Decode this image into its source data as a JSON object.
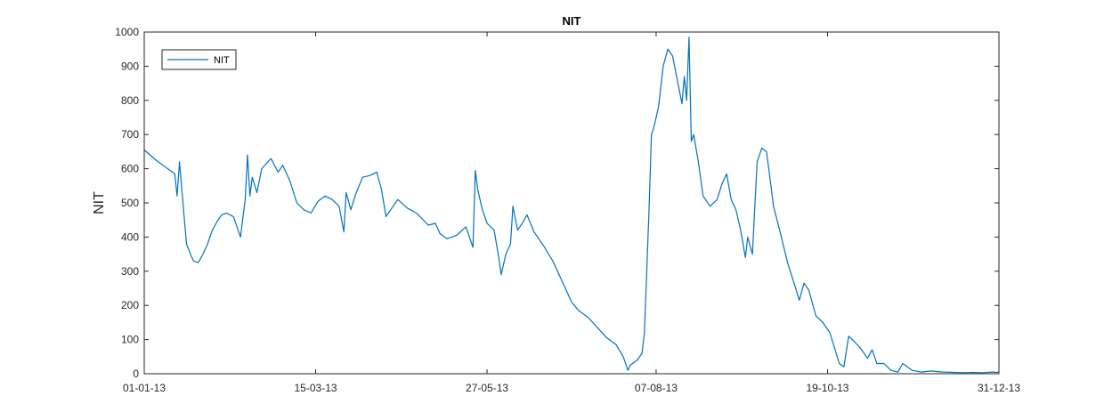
{
  "chart_data": {
    "type": "line",
    "title": "NIT",
    "xlabel": "",
    "ylabel": "NIT",
    "x_axis": {
      "type": "date",
      "range": [
        "2013-01-01",
        "2013-12-31"
      ],
      "tick_dates": [
        "2013-01-01",
        "2013-03-15",
        "2013-05-27",
        "2013-08-07",
        "2013-10-19",
        "2013-12-31"
      ],
      "tick_labels": [
        "01-01-13",
        "15-03-13",
        "27-05-13",
        "07-08-13",
        "19-10-13",
        "31-12-13"
      ]
    },
    "y_axis": {
      "range": [
        0,
        1000
      ],
      "ticks": [
        0,
        100,
        200,
        300,
        400,
        500,
        600,
        700,
        800,
        900,
        1000
      ]
    },
    "grid": false,
    "legend": {
      "position": "top-left",
      "entries": [
        "NIT"
      ]
    },
    "series": [
      {
        "name": "NIT",
        "color": "#0072BD",
        "points": [
          [
            "2013-01-01",
            655
          ],
          [
            "2013-01-06",
            625
          ],
          [
            "2013-01-10",
            605
          ],
          [
            "2013-01-14",
            585
          ],
          [
            "2013-01-15",
            520
          ],
          [
            "2013-01-16",
            620
          ],
          [
            "2013-01-18",
            460
          ],
          [
            "2013-01-19",
            380
          ],
          [
            "2013-01-21",
            345
          ],
          [
            "2013-01-22",
            330
          ],
          [
            "2013-01-24",
            325
          ],
          [
            "2013-01-26",
            350
          ],
          [
            "2013-01-28",
            380
          ],
          [
            "2013-01-30",
            420
          ],
          [
            "2013-02-01",
            445
          ],
          [
            "2013-02-03",
            465
          ],
          [
            "2013-02-05",
            470
          ],
          [
            "2013-02-08",
            460
          ],
          [
            "2013-02-11",
            400
          ],
          [
            "2013-02-13",
            510
          ],
          [
            "2013-02-14",
            640
          ],
          [
            "2013-02-15",
            520
          ],
          [
            "2013-02-16",
            575
          ],
          [
            "2013-02-18",
            530
          ],
          [
            "2013-02-20",
            600
          ],
          [
            "2013-02-24",
            630
          ],
          [
            "2013-02-27",
            590
          ],
          [
            "2013-03-01",
            610
          ],
          [
            "2013-03-04",
            565
          ],
          [
            "2013-03-07",
            500
          ],
          [
            "2013-03-10",
            480
          ],
          [
            "2013-03-13",
            470
          ],
          [
            "2013-03-16",
            505
          ],
          [
            "2013-03-19",
            520
          ],
          [
            "2013-03-22",
            510
          ],
          [
            "2013-03-25",
            490
          ],
          [
            "2013-03-27",
            415
          ],
          [
            "2013-03-28",
            530
          ],
          [
            "2013-03-30",
            480
          ],
          [
            "2013-04-01",
            525
          ],
          [
            "2013-04-04",
            575
          ],
          [
            "2013-04-07",
            580
          ],
          [
            "2013-04-10",
            590
          ],
          [
            "2013-04-12",
            540
          ],
          [
            "2013-04-14",
            460
          ],
          [
            "2013-04-16",
            480
          ],
          [
            "2013-04-19",
            510
          ],
          [
            "2013-04-23",
            485
          ],
          [
            "2013-04-27",
            470
          ],
          [
            "2013-05-02",
            435
          ],
          [
            "2013-05-05",
            440
          ],
          [
            "2013-05-07",
            410
          ],
          [
            "2013-05-10",
            395
          ],
          [
            "2013-05-14",
            405
          ],
          [
            "2013-05-18",
            430
          ],
          [
            "2013-05-21",
            370
          ],
          [
            "2013-05-22",
            595
          ],
          [
            "2013-05-23",
            540
          ],
          [
            "2013-05-25",
            480
          ],
          [
            "2013-05-27",
            440
          ],
          [
            "2013-05-30",
            420
          ],
          [
            "2013-06-01",
            340
          ],
          [
            "2013-06-02",
            290
          ],
          [
            "2013-06-04",
            350
          ],
          [
            "2013-06-06",
            380
          ],
          [
            "2013-06-07",
            490
          ],
          [
            "2013-06-09",
            420
          ],
          [
            "2013-06-11",
            440
          ],
          [
            "2013-06-13",
            465
          ],
          [
            "2013-06-16",
            415
          ],
          [
            "2013-06-20",
            375
          ],
          [
            "2013-06-24",
            330
          ],
          [
            "2013-06-28",
            270
          ],
          [
            "2013-07-02",
            210
          ],
          [
            "2013-07-05",
            185
          ],
          [
            "2013-07-09",
            165
          ],
          [
            "2013-07-13",
            135
          ],
          [
            "2013-07-17",
            105
          ],
          [
            "2013-07-21",
            85
          ],
          [
            "2013-07-24",
            50
          ],
          [
            "2013-07-26",
            10
          ],
          [
            "2013-07-27",
            25
          ],
          [
            "2013-07-30",
            40
          ],
          [
            "2013-08-01",
            60
          ],
          [
            "2013-08-02",
            120
          ],
          [
            "2013-08-04",
            480
          ],
          [
            "2013-08-05",
            700
          ],
          [
            "2013-08-06",
            720
          ],
          [
            "2013-08-08",
            780
          ],
          [
            "2013-08-10",
            900
          ],
          [
            "2013-08-12",
            950
          ],
          [
            "2013-08-14",
            930
          ],
          [
            "2013-08-16",
            860
          ],
          [
            "2013-08-18",
            790
          ],
          [
            "2013-08-19",
            870
          ],
          [
            "2013-08-20",
            800
          ],
          [
            "2013-08-21",
            985
          ],
          [
            "2013-08-22",
            680
          ],
          [
            "2013-08-23",
            700
          ],
          [
            "2013-08-25",
            620
          ],
          [
            "2013-08-27",
            520
          ],
          [
            "2013-08-30",
            490
          ],
          [
            "2013-09-02",
            510
          ],
          [
            "2013-09-04",
            555
          ],
          [
            "2013-09-06",
            585
          ],
          [
            "2013-09-08",
            510
          ],
          [
            "2013-09-10",
            480
          ],
          [
            "2013-09-12",
            420
          ],
          [
            "2013-09-14",
            340
          ],
          [
            "2013-09-15",
            400
          ],
          [
            "2013-09-17",
            350
          ],
          [
            "2013-09-19",
            620
          ],
          [
            "2013-09-21",
            660
          ],
          [
            "2013-09-23",
            650
          ],
          [
            "2013-09-24",
            600
          ],
          [
            "2013-09-26",
            490
          ],
          [
            "2013-09-29",
            410
          ],
          [
            "2013-10-02",
            325
          ],
          [
            "2013-10-05",
            260
          ],
          [
            "2013-10-07",
            215
          ],
          [
            "2013-10-09",
            265
          ],
          [
            "2013-10-11",
            245
          ],
          [
            "2013-10-14",
            170
          ],
          [
            "2013-10-17",
            150
          ],
          [
            "2013-10-20",
            120
          ],
          [
            "2013-10-22",
            75
          ],
          [
            "2013-10-24",
            30
          ],
          [
            "2013-10-26",
            20
          ],
          [
            "2013-10-28",
            110
          ],
          [
            "2013-10-31",
            90
          ],
          [
            "2013-11-02",
            75
          ],
          [
            "2013-11-05",
            45
          ],
          [
            "2013-11-07",
            70
          ],
          [
            "2013-11-09",
            30
          ],
          [
            "2013-11-12",
            30
          ],
          [
            "2013-11-15",
            10
          ],
          [
            "2013-11-18",
            5
          ],
          [
            "2013-11-20",
            30
          ],
          [
            "2013-11-24",
            10
          ],
          [
            "2013-11-28",
            5
          ],
          [
            "2013-12-02",
            8
          ],
          [
            "2013-12-07",
            5
          ],
          [
            "2013-12-12",
            4
          ],
          [
            "2013-12-16",
            3
          ],
          [
            "2013-12-20",
            4
          ],
          [
            "2013-12-24",
            3
          ],
          [
            "2013-12-28",
            5
          ],
          [
            "2013-12-30",
            4
          ],
          [
            "2013-12-31",
            5
          ]
        ]
      }
    ]
  }
}
